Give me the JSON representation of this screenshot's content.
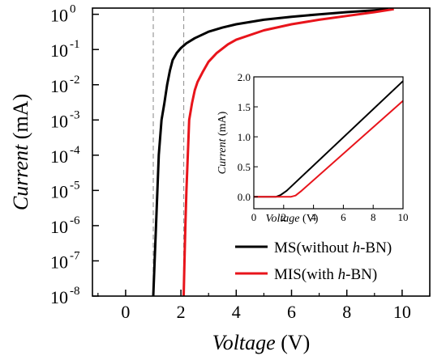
{
  "chart_data": [
    {
      "type": "line",
      "xlabel": "Voltage (V)",
      "xlabel_prefix": "Voltage",
      "xlabel_unit": " (V)",
      "ylabel": "Current (mA)",
      "ylabel_prefix": "Current",
      "ylabel_unit": " (mA)",
      "xlim": [
        -1.2,
        11
      ],
      "ylim": [
        1e-08,
        1.5
      ],
      "yscale": "log",
      "grid": false,
      "xticks": [
        0,
        2,
        4,
        6,
        8,
        10
      ],
      "xtick_labels": [
        "0",
        "2",
        "4",
        "6",
        "8",
        "10"
      ],
      "yticks": [
        1e-08,
        1e-07,
        1e-06,
        1e-05,
        0.0001,
        0.001,
        0.01,
        0.1,
        1
      ],
      "ytick_exponents": [
        "-8",
        "-7",
        "-6",
        "-5",
        "-4",
        "-3",
        "-2",
        "-1",
        "0"
      ],
      "ytick_base": "10",
      "reference_lines_x": [
        1.0,
        2.1
      ],
      "legend_position": "bottom-right",
      "series": [
        {
          "name": "MS(without h-BN)",
          "name_before": "MS(without ",
          "name_italic": "h",
          "name_after": "-BN)",
          "color": "#000000",
          "x": [
            1.0,
            1.05,
            1.1,
            1.15,
            1.2,
            1.3,
            1.4,
            1.5,
            1.6,
            1.7,
            1.85,
            2.0,
            2.2,
            2.5,
            3.0,
            3.5,
            4.0,
            5.0,
            6.0,
            7.0,
            8.0,
            9.0,
            9.5
          ],
          "y": [
            1e-08,
            1e-07,
            1e-06,
            1e-05,
            0.0001,
            0.001,
            0.003,
            0.01,
            0.025,
            0.05,
            0.08,
            0.11,
            0.15,
            0.21,
            0.32,
            0.42,
            0.52,
            0.7,
            0.85,
            1.0,
            1.15,
            1.3,
            1.4
          ]
        },
        {
          "name": "MIS(with h-BN)",
          "name_before": "MIS(with ",
          "name_italic": "h",
          "name_after": "-BN)",
          "color": "#e8141b",
          "x": [
            2.1,
            2.13,
            2.16,
            2.2,
            2.25,
            2.3,
            2.4,
            2.5,
            2.6,
            2.8,
            3.0,
            3.3,
            3.7,
            4.0,
            5.0,
            6.0,
            7.0,
            8.0,
            9.0,
            9.7
          ],
          "y": [
            1e-08,
            1e-07,
            1e-06,
            1e-05,
            0.0001,
            0.001,
            0.003,
            0.007,
            0.012,
            0.024,
            0.045,
            0.08,
            0.14,
            0.19,
            0.35,
            0.52,
            0.7,
            0.9,
            1.15,
            1.4
          ]
        }
      ]
    },
    {
      "type": "line",
      "xlabel": "Voltage (V)",
      "xlabel_prefix": "Voltage",
      "xlabel_unit": " (V)",
      "ylabel": "Current (mA)",
      "ylabel_prefix": "Current",
      "ylabel_unit": " (mA)",
      "xlim": [
        0,
        10
      ],
      "ylim": [
        -0.2,
        2.0
      ],
      "grid": false,
      "xticks": [
        0,
        2,
        4,
        6,
        8,
        10
      ],
      "xtick_labels": [
        "0",
        "2",
        "4",
        "6",
        "8",
        "10"
      ],
      "yticks": [
        0.0,
        0.5,
        1.0,
        1.5,
        2.0
      ],
      "ytick_labels": [
        "0.0",
        "0.5",
        "1.0",
        "1.5",
        "2.0"
      ],
      "series": [
        {
          "name": "MS(without h-BN)",
          "color": "#000000",
          "x": [
            0,
            1.0,
            1.5,
            1.8,
            2.2,
            10
          ],
          "y": [
            0.0,
            0.0,
            0.0,
            0.03,
            0.1,
            1.93
          ]
        },
        {
          "name": "MIS(with h-BN)",
          "color": "#e8141b",
          "x": [
            0,
            1.5,
            2.5,
            2.8,
            3.2,
            10
          ],
          "y": [
            0.0,
            0.0,
            0.0,
            0.02,
            0.1,
            1.6
          ]
        }
      ]
    }
  ]
}
